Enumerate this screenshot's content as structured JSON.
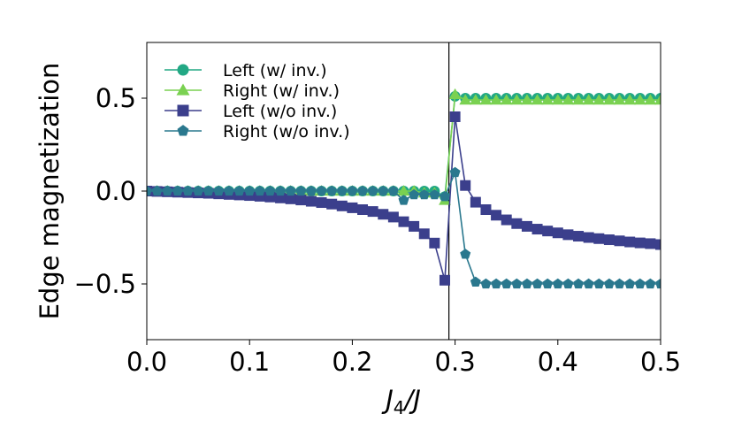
{
  "chart_data": {
    "type": "line",
    "title": "",
    "xlabel_main": "J",
    "xlabel_sub": "4",
    "xlabel_tail": "/J",
    "ylabel": "Edge magnetization",
    "xlim": [
      0.0,
      0.5
    ],
    "ylim": [
      -0.8,
      0.8
    ],
    "xticks": [
      0.0,
      0.1,
      0.2,
      0.3,
      0.4,
      0.5
    ],
    "xtick_labels": [
      "0.0",
      "0.1",
      "0.2",
      "0.3",
      "0.4",
      "0.5"
    ],
    "yticks": [
      -0.5,
      0.0,
      0.5
    ],
    "ytick_labels": [
      "−0.5",
      "0.0",
      "0.5"
    ],
    "vline_x": 0.294,
    "legend_position": "top-left",
    "x": [
      0.0,
      0.01,
      0.02,
      0.03,
      0.04,
      0.05,
      0.06,
      0.07,
      0.08,
      0.09,
      0.1,
      0.11,
      0.12,
      0.13,
      0.14,
      0.15,
      0.16,
      0.17,
      0.18,
      0.19,
      0.2,
      0.21,
      0.22,
      0.23,
      0.24,
      0.25,
      0.26,
      0.27,
      0.28,
      0.29,
      0.3,
      0.31,
      0.32,
      0.33,
      0.34,
      0.35,
      0.36,
      0.37,
      0.38,
      0.39,
      0.4,
      0.41,
      0.42,
      0.43,
      0.44,
      0.45,
      0.46,
      0.47,
      0.48,
      0.49,
      0.5
    ],
    "series": [
      {
        "name": "Left (w/ inv.)",
        "marker": "circle",
        "color": "#22a884",
        "values": [
          0.0,
          0.0,
          0.0,
          0.0,
          0.0,
          0.0,
          0.0,
          0.0,
          0.0,
          0.0,
          0.0,
          0.0,
          0.0,
          0.0,
          0.0,
          0.0,
          0.0,
          0.0,
          0.0,
          0.0,
          0.0,
          0.0,
          0.0,
          0.0,
          0.0,
          0.0,
          0.0,
          0.0,
          0.0,
          -0.03,
          0.51,
          0.5,
          0.5,
          0.5,
          0.5,
          0.5,
          0.5,
          0.5,
          0.5,
          0.5,
          0.5,
          0.5,
          0.5,
          0.5,
          0.5,
          0.5,
          0.5,
          0.5,
          0.5,
          0.5,
          0.5
        ]
      },
      {
        "name": "Right (w/ inv.)",
        "marker": "triangle",
        "color": "#7ad151",
        "values": [
          0.0,
          0.0,
          0.0,
          0.0,
          0.0,
          0.0,
          0.0,
          0.0,
          0.0,
          0.0,
          0.0,
          0.0,
          0.0,
          0.0,
          0.0,
          0.0,
          0.0,
          0.0,
          0.0,
          0.0,
          0.0,
          0.0,
          0.0,
          0.0,
          0.0,
          0.0,
          0.0,
          -0.01,
          -0.01,
          -0.05,
          0.52,
          0.49,
          0.49,
          0.49,
          0.49,
          0.49,
          0.49,
          0.49,
          0.49,
          0.49,
          0.49,
          0.49,
          0.49,
          0.49,
          0.49,
          0.49,
          0.49,
          0.49,
          0.49,
          0.49,
          0.49
        ]
      },
      {
        "name": "Left (w/o inv.)",
        "marker": "square",
        "color": "#3b3f8c",
        "values": [
          0.0,
          -0.002,
          -0.004,
          -0.006,
          -0.008,
          -0.01,
          -0.012,
          -0.015,
          -0.018,
          -0.021,
          -0.024,
          -0.028,
          -0.032,
          -0.037,
          -0.042,
          -0.048,
          -0.055,
          -0.062,
          -0.07,
          -0.08,
          -0.09,
          -0.1,
          -0.11,
          -0.125,
          -0.14,
          -0.165,
          -0.19,
          -0.23,
          -0.28,
          -0.48,
          0.4,
          0.03,
          -0.06,
          -0.1,
          -0.13,
          -0.155,
          -0.175,
          -0.19,
          -0.205,
          -0.215,
          -0.225,
          -0.235,
          -0.243,
          -0.25,
          -0.256,
          -0.262,
          -0.268,
          -0.274,
          -0.279,
          -0.283,
          -0.288
        ]
      },
      {
        "name": "Right (w/o inv.)",
        "marker": "pentagon",
        "color": "#2a788e",
        "values": [
          0.0,
          0.0,
          0.0,
          0.0,
          0.0,
          0.0,
          0.0,
          0.0,
          0.0,
          0.0,
          0.0,
          0.0,
          0.0,
          0.0,
          0.0,
          0.0,
          0.0,
          0.0,
          0.0,
          0.0,
          0.0,
          0.0,
          0.0,
          0.0,
          0.0,
          -0.05,
          -0.02,
          -0.02,
          -0.02,
          -0.03,
          0.1,
          -0.34,
          -0.49,
          -0.5,
          -0.5,
          -0.5,
          -0.5,
          -0.5,
          -0.5,
          -0.5,
          -0.5,
          -0.5,
          -0.5,
          -0.5,
          -0.5,
          -0.5,
          -0.5,
          -0.5,
          -0.5,
          -0.5,
          -0.5
        ]
      }
    ]
  }
}
